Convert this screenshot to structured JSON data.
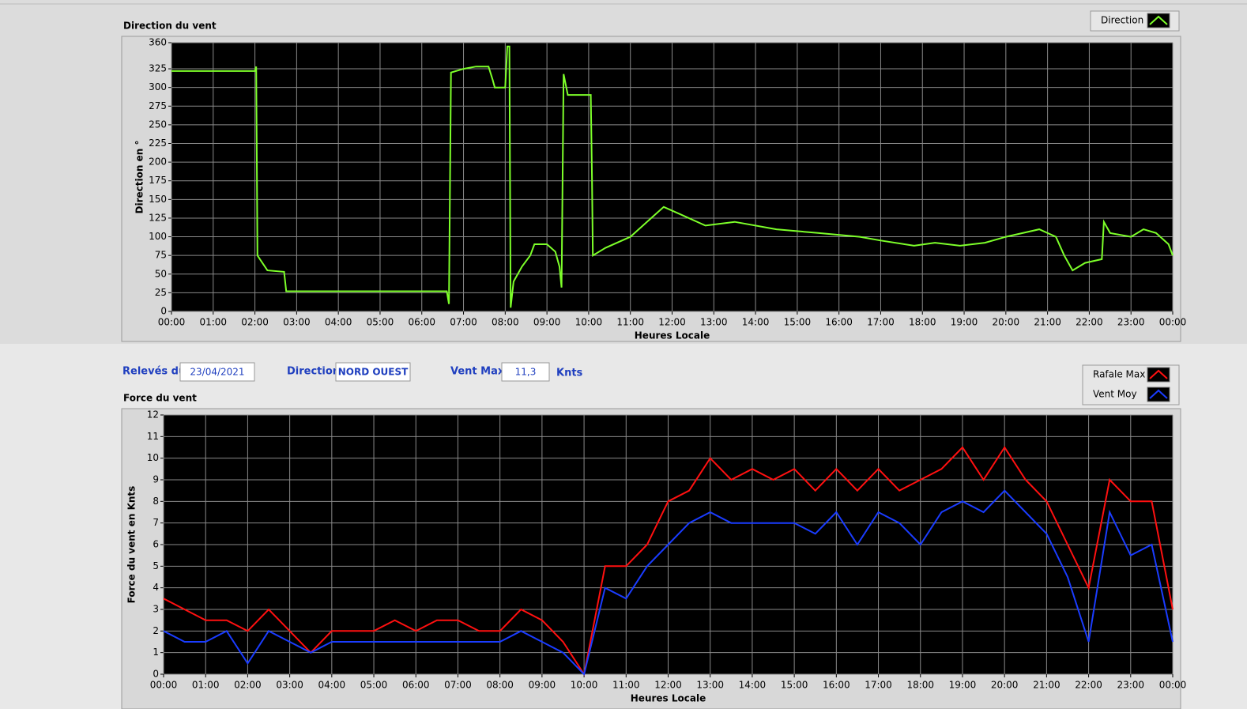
{
  "chart_data": [
    {
      "type": "line",
      "title": "Direction du vent",
      "xlabel": "Heures Locale",
      "ylabel": "Direction en °",
      "x": [
        0,
        2.0,
        2.03,
        2.06,
        2.12,
        2.3,
        2.7,
        2.75,
        6.6,
        6.65,
        6.7,
        7.0,
        7.3,
        7.6,
        7.7,
        7.75,
        8.0,
        8.05,
        8.1,
        8.13,
        8.2,
        8.4,
        8.6,
        8.7,
        9.0,
        9.2,
        9.3,
        9.35,
        9.4,
        9.5,
        10.05,
        10.08,
        10.1,
        10.4,
        11.0,
        11.5,
        11.8,
        12.2,
        12.8,
        13.5,
        14.5,
        15.5,
        16.5,
        17.0,
        17.8,
        18.3,
        18.9,
        19.5,
        20.0,
        20.8,
        21.2,
        21.4,
        21.6,
        21.9,
        22.3,
        22.35,
        22.5,
        23.0,
        23.3,
        23.6,
        23.9,
        24
      ],
      "series": [
        {
          "name": "Direction",
          "color": "#7dff2a",
          "values": [
            322,
            322,
            328,
            75,
            70,
            55,
            53,
            27,
            27,
            10,
            320,
            325,
            328,
            328,
            310,
            300,
            300,
            355,
            355,
            5,
            40,
            60,
            75,
            90,
            90,
            80,
            60,
            32,
            318,
            290,
            290,
            180,
            75,
            85,
            100,
            125,
            140,
            130,
            115,
            120,
            110,
            105,
            100,
            95,
            88,
            92,
            88,
            92,
            100,
            110,
            100,
            75,
            55,
            65,
            70,
            120,
            105,
            100,
            110,
            105,
            90,
            75
          ]
        }
      ],
      "xlim": [
        0,
        24
      ],
      "xticks": [
        {
          "value": 0,
          "label": "00:00"
        },
        {
          "value": 1,
          "label": "01:00"
        },
        {
          "value": 2,
          "label": "02:00"
        },
        {
          "value": 3,
          "label": "03:00"
        },
        {
          "value": 4,
          "label": "04:00"
        },
        {
          "value": 5,
          "label": "05:00"
        },
        {
          "value": 6,
          "label": "06:00"
        },
        {
          "value": 7,
          "label": "07:00"
        },
        {
          "value": 8,
          "label": "08:00"
        },
        {
          "value": 9,
          "label": "09:00"
        },
        {
          "value": 10,
          "label": "10:00"
        },
        {
          "value": 11,
          "label": "11:00"
        },
        {
          "value": 12,
          "label": "12:00"
        },
        {
          "value": 13,
          "label": "13:00"
        },
        {
          "value": 14,
          "label": "14:00"
        },
        {
          "value": 15,
          "label": "15:00"
        },
        {
          "value": 16,
          "label": "16:00"
        },
        {
          "value": 17,
          "label": "17:00"
        },
        {
          "value": 18,
          "label": "18:00"
        },
        {
          "value": 19,
          "label": "19:00"
        },
        {
          "value": 20,
          "label": "20:00"
        },
        {
          "value": 21,
          "label": "21:00"
        },
        {
          "value": 22,
          "label": "22:00"
        },
        {
          "value": 23,
          "label": "23:00"
        },
        {
          "value": 24,
          "label": "00:00"
        }
      ],
      "ylim": [
        0,
        360
      ],
      "yticks": [
        0,
        25,
        50,
        75,
        100,
        125,
        150,
        175,
        200,
        225,
        250,
        275,
        300,
        325,
        360
      ],
      "grid": true
    },
    {
      "type": "line",
      "title": "Force du vent",
      "xlabel": "Heures Locale",
      "ylabel": "Force du vent en Knts",
      "x": [
        0,
        0.5,
        1,
        1.5,
        2,
        2.5,
        3,
        3.5,
        4,
        4.5,
        5,
        5.5,
        6,
        6.5,
        7,
        7.5,
        8,
        8.5,
        9,
        9.5,
        10,
        10.5,
        11,
        11.5,
        12,
        12.5,
        13,
        13.5,
        14,
        14.5,
        15,
        15.5,
        16,
        16.5,
        17,
        17.5,
        18,
        18.5,
        19,
        19.5,
        20,
        20.5,
        21,
        21.5,
        22,
        22.5,
        23,
        23.5,
        24
      ],
      "series": [
        {
          "name": "Rafale Max",
          "color": "#ff1010",
          "values": [
            3.5,
            3,
            2.5,
            2.5,
            2,
            3,
            2,
            1,
            2,
            2,
            2,
            2.5,
            2,
            2.5,
            2.5,
            2,
            2,
            3,
            2.5,
            1.5,
            0,
            5,
            5,
            6,
            8,
            8.5,
            10,
            9,
            9.5,
            9,
            9.5,
            8.5,
            9.5,
            8.5,
            9.5,
            8.5,
            9,
            9.5,
            10.5,
            9,
            10.5,
            9,
            8,
            6,
            4,
            9,
            8,
            8,
            3
          ]
        },
        {
          "name": "Vent Moy",
          "color": "#1a3cff",
          "values": [
            2,
            1.5,
            1.5,
            2,
            0.5,
            2,
            1.5,
            1,
            1.5,
            1.5,
            1.5,
            1.5,
            1.5,
            1.5,
            1.5,
            1.5,
            1.5,
            2,
            1.5,
            1,
            0,
            4,
            3.5,
            5,
            6,
            7,
            7.5,
            7,
            7,
            7,
            7,
            6.5,
            7.5,
            6,
            7.5,
            7,
            6,
            7.5,
            8,
            7.5,
            8.5,
            7.5,
            6.5,
            4.5,
            1.5,
            7.5,
            5.5,
            6,
            1.5
          ]
        }
      ],
      "xlim": [
        0,
        24
      ],
      "xticks": [
        {
          "value": 0,
          "label": "00:00"
        },
        {
          "value": 1,
          "label": "01:00"
        },
        {
          "value": 2,
          "label": "02:00"
        },
        {
          "value": 3,
          "label": "03:00"
        },
        {
          "value": 4,
          "label": "04:00"
        },
        {
          "value": 5,
          "label": "05:00"
        },
        {
          "value": 6,
          "label": "06:00"
        },
        {
          "value": 7,
          "label": "07:00"
        },
        {
          "value": 8,
          "label": "08:00"
        },
        {
          "value": 9,
          "label": "09:00"
        },
        {
          "value": 10,
          "label": "10:00"
        },
        {
          "value": 11,
          "label": "11:00"
        },
        {
          "value": 12,
          "label": "12:00"
        },
        {
          "value": 13,
          "label": "13:00"
        },
        {
          "value": 14,
          "label": "14:00"
        },
        {
          "value": 15,
          "label": "15:00"
        },
        {
          "value": 16,
          "label": "16:00"
        },
        {
          "value": 17,
          "label": "17:00"
        },
        {
          "value": 18,
          "label": "18:00"
        },
        {
          "value": 19,
          "label": "19:00"
        },
        {
          "value": 20,
          "label": "20:00"
        },
        {
          "value": 21,
          "label": "21:00"
        },
        {
          "value": 22,
          "label": "22:00"
        },
        {
          "value": 23,
          "label": "23:00"
        },
        {
          "value": 24,
          "label": "00:00"
        }
      ],
      "ylim": [
        0,
        12
      ],
      "yticks": [
        0,
        1,
        2,
        3,
        4,
        5,
        6,
        7,
        8,
        9,
        10,
        11,
        12
      ],
      "grid": true
    }
  ],
  "fields": [
    {
      "label": "Relevés du",
      "value": "23/04/2021"
    },
    {
      "label": "Direction",
      "value": "NORD OUEST"
    },
    {
      "label": "Vent Max",
      "value": "11,3",
      "unit": "Knts"
    }
  ]
}
